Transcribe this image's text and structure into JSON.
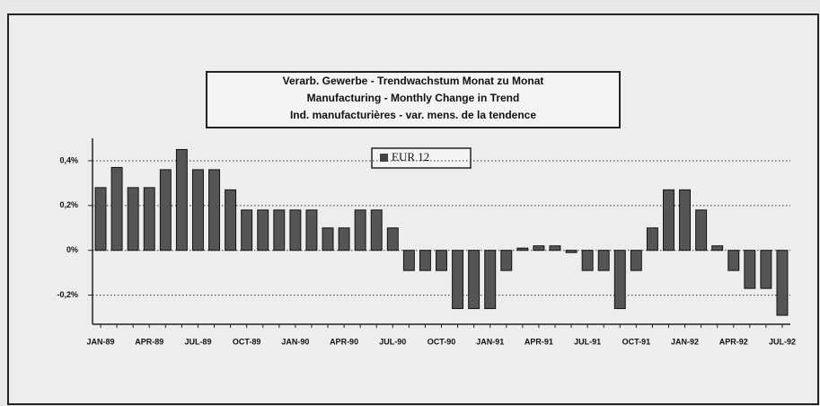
{
  "chart_data": {
    "type": "bar",
    "title": [
      "Verarb. Gewerbe - Trendwachstum Monat zu Monat",
      "Manufacturing - Monthly Change in Trend",
      "Ind. manufacturières - var. mens. de la tendence"
    ],
    "legend": "EUR 12",
    "color": "#555555",
    "categories": [
      "JAN-89",
      null,
      null,
      "APR-89",
      null,
      null,
      "JUL-89",
      null,
      null,
      "OCT-89",
      null,
      null,
      "JAN-90",
      null,
      null,
      "APR-90",
      null,
      null,
      "JUL-90",
      null,
      null,
      "OCT-90",
      null,
      null,
      "JAN-91",
      null,
      null,
      "APR-91",
      null,
      null,
      "JUL-91",
      null,
      null,
      "OCT-91",
      null,
      null,
      "JAN-92",
      null,
      null,
      "APR-92",
      null,
      null,
      "JUL-92"
    ],
    "values": [
      0.28,
      0.37,
      0.28,
      0.28,
      0.36,
      0.45,
      0.36,
      0.36,
      0.27,
      0.18,
      0.18,
      0.18,
      0.18,
      0.18,
      0.1,
      0.1,
      0.18,
      0.18,
      0.1,
      -0.09,
      -0.09,
      -0.09,
      -0.26,
      -0.26,
      -0.26,
      -0.09,
      0.01,
      0.02,
      0.02,
      -0.01,
      -0.09,
      -0.09,
      -0.26,
      -0.09,
      0.1,
      0.27,
      0.27,
      0.18,
      0.02,
      -0.09,
      -0.17,
      -0.17,
      -0.29
    ],
    "ylim": [
      -0.33,
      0.5
    ],
    "yticks": [
      {
        "value": -0.2,
        "label": "-0,2%"
      },
      {
        "value": 0,
        "label": "0%"
      },
      {
        "value": 0.2,
        "label": "0,2%"
      },
      {
        "value": 0.4,
        "label": "0,4%"
      }
    ],
    "grid": true
  }
}
